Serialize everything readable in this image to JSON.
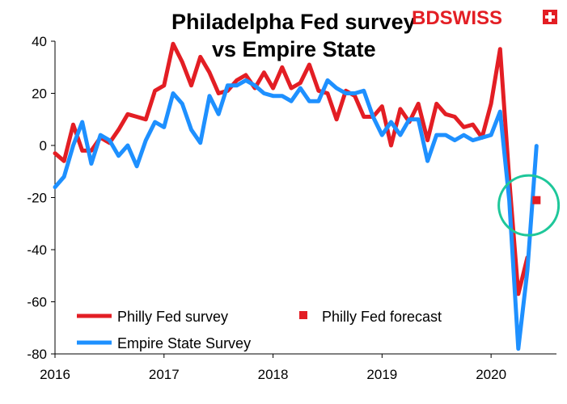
{
  "chart_data": {
    "type": "line",
    "title_lines": [
      "Philadelpha Fed survey",
      "vs Empire State"
    ],
    "logo": "BDSWISS",
    "ylim": [
      -80,
      40
    ],
    "yticks": [
      40,
      20,
      0,
      -20,
      -40,
      -60,
      -80
    ],
    "xlim": [
      2016.0,
      2020.6
    ],
    "xtick_labels": [
      "2016",
      "2017",
      "2018",
      "2019",
      "2020"
    ],
    "xtick_values": [
      2016,
      2017,
      2018,
      2019,
      2020
    ],
    "grid": false,
    "legend_placement": "bottom-left",
    "series": [
      {
        "name": "Philly Fed survey",
        "color": "#e31e24",
        "x": [
          2016.0,
          2016.083,
          2016.167,
          2016.25,
          2016.333,
          2016.417,
          2016.5,
          2016.583,
          2016.667,
          2016.75,
          2016.833,
          2016.917,
          2017.0,
          2017.083,
          2017.167,
          2017.25,
          2017.333,
          2017.417,
          2017.5,
          2017.583,
          2017.667,
          2017.75,
          2017.833,
          2017.917,
          2018.0,
          2018.083,
          2018.167,
          2018.25,
          2018.333,
          2018.417,
          2018.5,
          2018.583,
          2018.667,
          2018.75,
          2018.833,
          2018.917,
          2019.0,
          2019.083,
          2019.167,
          2019.25,
          2019.333,
          2019.417,
          2019.5,
          2019.583,
          2019.667,
          2019.75,
          2019.833,
          2019.917,
          2020.0,
          2020.083,
          2020.167,
          2020.25,
          2020.333
        ],
        "values": [
          -3,
          -6,
          8,
          -2,
          -2,
          3,
          1,
          6,
          12,
          11,
          10,
          21,
          23,
          39,
          32,
          23,
          34,
          28,
          20,
          21,
          25,
          27,
          22,
          28,
          22,
          30,
          22,
          24,
          31,
          21,
          20,
          10,
          21,
          19,
          11,
          11,
          15,
          0,
          14,
          9,
          16,
          2,
          16,
          12,
          11,
          7,
          8,
          3,
          16,
          37,
          -13,
          -57,
          -43
        ]
      },
      {
        "name": "Empire State Survey",
        "color": "#1e90ff",
        "x": [
          2016.0,
          2016.083,
          2016.167,
          2016.25,
          2016.333,
          2016.417,
          2016.5,
          2016.583,
          2016.667,
          2016.75,
          2016.833,
          2016.917,
          2017.0,
          2017.083,
          2017.167,
          2017.25,
          2017.333,
          2017.417,
          2017.5,
          2017.583,
          2017.667,
          2017.75,
          2017.833,
          2017.917,
          2018.0,
          2018.083,
          2018.167,
          2018.25,
          2018.333,
          2018.417,
          2018.5,
          2018.583,
          2018.667,
          2018.75,
          2018.833,
          2018.917,
          2019.0,
          2019.083,
          2019.167,
          2019.25,
          2019.333,
          2019.417,
          2019.5,
          2019.583,
          2019.667,
          2019.75,
          2019.833,
          2019.917,
          2020.0,
          2020.083,
          2020.167,
          2020.25,
          2020.333,
          2020.417
        ],
        "values": [
          -16,
          -12,
          0,
          9,
          -7,
          4,
          2,
          -4,
          0,
          -8,
          2,
          9,
          7,
          20,
          16,
          6,
          1,
          19,
          12,
          23,
          23,
          25,
          23,
          20,
          19,
          19,
          17,
          22,
          17,
          17,
          25,
          22,
          20,
          20,
          21,
          11,
          4,
          9,
          4,
          10,
          10,
          -6,
          4,
          4,
          2,
          4,
          2,
          3,
          4,
          13,
          -21,
          -78,
          -48,
          -0.2
        ]
      }
    ],
    "points": [
      {
        "name": "Philly Fed forecast",
        "color": "#e31e24",
        "x": 2020.417,
        "value": -21
      }
    ],
    "annotation": {
      "type": "circle",
      "color": "#1ec79a",
      "cx": 2020.345,
      "cy": -23
    }
  }
}
